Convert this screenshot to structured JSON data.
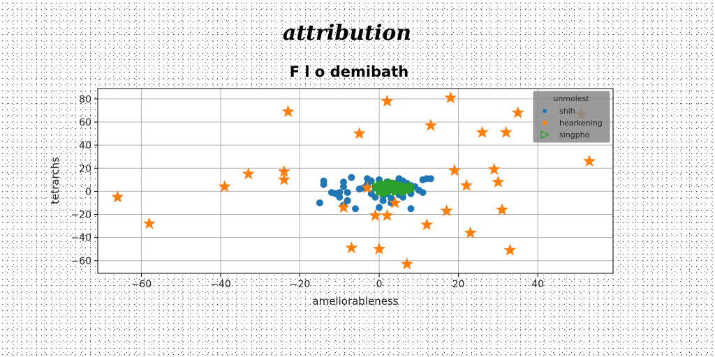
{
  "chart_data": {
    "type": "scatter",
    "suptitle": "attribution",
    "title": "F l o demibath",
    "xlabel": "ameliorableness",
    "ylabel": "tetrarchs",
    "xlim": [
      -71,
      59
    ],
    "ylim": [
      -71,
      89
    ],
    "xticks": [
      -60,
      -40,
      -20,
      0,
      20,
      40
    ],
    "yticks": [
      -60,
      -40,
      -20,
      0,
      20,
      40,
      60,
      80
    ],
    "grid": true,
    "legend": {
      "title": "unmolest",
      "placement": "top-right"
    },
    "series": [
      {
        "name": "shih",
        "marker": "circle",
        "color": "#1f77b4",
        "points": [
          [
            -14,
            9
          ],
          [
            -14,
            6
          ],
          [
            -15,
            -10
          ],
          [
            -12,
            -1
          ],
          [
            -11,
            -2
          ],
          [
            -10,
            -1
          ],
          [
            -10,
            -5
          ],
          [
            -9,
            8
          ],
          [
            -9,
            4
          ],
          [
            -8,
            -1
          ],
          [
            -8,
            -8
          ],
          [
            -9,
            -12
          ],
          [
            -7,
            12
          ],
          [
            -6,
            -15
          ],
          [
            -5,
            2
          ],
          [
            -4,
            3
          ],
          [
            -3,
            11
          ],
          [
            -3,
            6
          ],
          [
            -2,
            9
          ],
          [
            -2,
            -2
          ],
          [
            -1,
            3
          ],
          [
            -1,
            -5
          ],
          [
            0,
            10
          ],
          [
            0,
            -14
          ],
          [
            0,
            6
          ],
          [
            1,
            -4
          ],
          [
            1,
            -8
          ],
          [
            1,
            0
          ],
          [
            2,
            8
          ],
          [
            2,
            -2
          ],
          [
            3,
            4
          ],
          [
            3,
            -6
          ],
          [
            4,
            7
          ],
          [
            4,
            1
          ],
          [
            5,
            11
          ],
          [
            5,
            -3
          ],
          [
            5,
            5
          ],
          [
            6,
            9
          ],
          [
            6,
            2
          ],
          [
            6,
            -5
          ],
          [
            7,
            3
          ],
          [
            7,
            7
          ],
          [
            8,
            -2
          ],
          [
            8,
            5
          ],
          [
            9,
            4
          ],
          [
            10,
            1
          ],
          [
            11,
            -1
          ],
          [
            11,
            10
          ],
          [
            12,
            11
          ],
          [
            13,
            11
          ],
          [
            8,
            -15
          ],
          [
            3,
            -10
          ]
        ]
      },
      {
        "name": "hearkening",
        "marker": "star",
        "color": "#ff7f0e",
        "points": [
          [
            -66,
            -5
          ],
          [
            -58,
            -28
          ],
          [
            -39,
            4
          ],
          [
            -33,
            15
          ],
          [
            -24,
            17
          ],
          [
            -24,
            10
          ],
          [
            -23,
            69
          ],
          [
            -9,
            -14
          ],
          [
            -7,
            -49
          ],
          [
            -5,
            50
          ],
          [
            -3,
            3
          ],
          [
            -1,
            -21
          ],
          [
            0,
            -50
          ],
          [
            2,
            -21
          ],
          [
            2,
            78
          ],
          [
            4,
            -10
          ],
          [
            7,
            -63
          ],
          [
            12,
            -29
          ],
          [
            13,
            57
          ],
          [
            17,
            -17
          ],
          [
            18,
            81
          ],
          [
            19,
            18
          ],
          [
            22,
            5
          ],
          [
            23,
            -36
          ],
          [
            26,
            51
          ],
          [
            29,
            19
          ],
          [
            30,
            8
          ],
          [
            31,
            -16
          ],
          [
            32,
            51
          ],
          [
            33,
            -51
          ],
          [
            35,
            68
          ],
          [
            51,
            67
          ],
          [
            53,
            26
          ]
        ]
      },
      {
        "name": "singpho",
        "marker": "triangle-right",
        "color": "#2ca02c",
        "points": [
          [
            -1,
            3
          ],
          [
            -1,
            5
          ],
          [
            0,
            1
          ],
          [
            0,
            6
          ],
          [
            0,
            3
          ],
          [
            1,
            2
          ],
          [
            1,
            4
          ],
          [
            1,
            0
          ],
          [
            1,
            7
          ],
          [
            2,
            3
          ],
          [
            2,
            5
          ],
          [
            2,
            1
          ],
          [
            2,
            -1
          ],
          [
            3,
            4
          ],
          [
            3,
            2
          ],
          [
            3,
            6
          ],
          [
            3,
            0
          ],
          [
            4,
            3
          ],
          [
            4,
            5
          ],
          [
            4,
            1
          ],
          [
            4,
            7
          ],
          [
            5,
            2
          ],
          [
            5,
            4
          ],
          [
            5,
            0
          ],
          [
            6,
            3
          ],
          [
            6,
            5
          ],
          [
            6,
            1
          ],
          [
            6,
            -1
          ],
          [
            7,
            2
          ],
          [
            7,
            4
          ],
          [
            7,
            0
          ],
          [
            8,
            3
          ],
          [
            8,
            5
          ],
          [
            8,
            1
          ],
          [
            2,
            7
          ],
          [
            3,
            8
          ],
          [
            4,
            -1
          ],
          [
            5,
            6
          ],
          [
            1,
            -2
          ],
          [
            0,
            -1
          ]
        ]
      }
    ]
  }
}
